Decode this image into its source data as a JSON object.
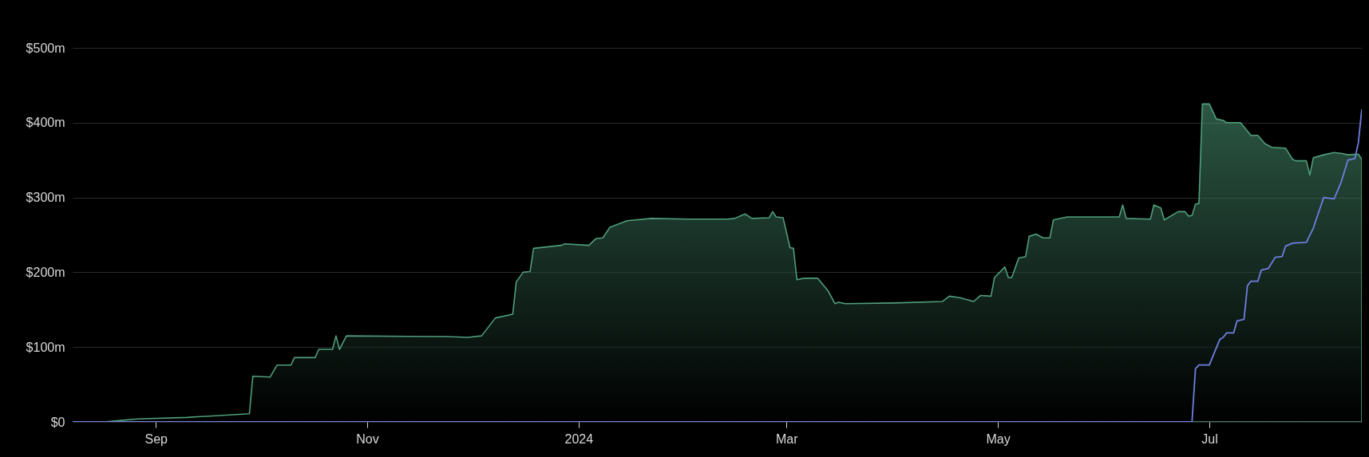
{
  "chart_data": {
    "type": "area",
    "xlim": [
      "2023-08-08",
      "2024-08-14"
    ],
    "ylim": [
      0,
      500
    ],
    "xticks": [
      {
        "value": "2023-09-01",
        "label": "Sep"
      },
      {
        "value": "2023-11-01",
        "label": "Nov"
      },
      {
        "value": "2024-01-01",
        "label": "2024"
      },
      {
        "value": "2024-03-01",
        "label": "Mar"
      },
      {
        "value": "2024-05-01",
        "label": "May"
      },
      {
        "value": "2024-07-01",
        "label": "Jul"
      }
    ],
    "yticks": [
      {
        "value": 0,
        "label": "$0"
      },
      {
        "value": 100,
        "label": "$100m"
      },
      {
        "value": 200,
        "label": "$200m"
      },
      {
        "value": 300,
        "label": "$300m"
      },
      {
        "value": 400,
        "label": "$400m"
      },
      {
        "value": 500,
        "label": "$500m"
      }
    ],
    "grid": "y",
    "series": [
      {
        "color": "#4f9e7b",
        "x": [
          "2023-08-08",
          "2023-08-17",
          "2023-08-22",
          "2023-08-27",
          "2023-09-10",
          "2023-09-28",
          "2023-09-29",
          "2023-10-04",
          "2023-10-06",
          "2023-10-10",
          "2023-10-11",
          "2023-10-17",
          "2023-10-18",
          "2023-10-22",
          "2023-10-23",
          "2023-10-24",
          "2023-10-26",
          "2023-11-24",
          "2023-11-30",
          "2023-12-04",
          "2023-12-08",
          "2023-12-13",
          "2023-12-14",
          "2023-12-16",
          "2023-12-18",
          "2023-12-19",
          "2023-12-27",
          "2023-12-28",
          "2024-01-04",
          "2024-01-06",
          "2024-01-08",
          "2024-01-10",
          "2024-01-15",
          "2024-01-22",
          "2024-02-02",
          "2024-02-13",
          "2024-02-15",
          "2024-02-18",
          "2024-02-20",
          "2024-02-25",
          "2024-02-26",
          "2024-02-27",
          "2024-02-29",
          "2024-03-02",
          "2024-03-03",
          "2024-03-04",
          "2024-03-06",
          "2024-03-10",
          "2024-03-13",
          "2024-03-15",
          "2024-03-16",
          "2024-03-18",
          "2024-04-01",
          "2024-04-15",
          "2024-04-17",
          "2024-04-20",
          "2024-04-24",
          "2024-04-26",
          "2024-04-29",
          "2024-04-30",
          "2024-05-03",
          "2024-05-04",
          "2024-05-05",
          "2024-05-07",
          "2024-05-09",
          "2024-05-10",
          "2024-05-12",
          "2024-05-14",
          "2024-05-16",
          "2024-05-17",
          "2024-05-21",
          "2024-06-05",
          "2024-06-06",
          "2024-06-07",
          "2024-06-14",
          "2024-06-15",
          "2024-06-17",
          "2024-06-18",
          "2024-06-22",
          "2024-06-24",
          "2024-06-25",
          "2024-06-26",
          "2024-06-27",
          "2024-06-28",
          "2024-06-29",
          "2024-07-01",
          "2024-07-03",
          "2024-07-05",
          "2024-07-06",
          "2024-07-10",
          "2024-07-13",
          "2024-07-15",
          "2024-07-17",
          "2024-07-19",
          "2024-07-23",
          "2024-07-25",
          "2024-07-26",
          "2024-07-29",
          "2024-07-30",
          "2024-07-31",
          "2024-08-03",
          "2024-08-06",
          "2024-08-08",
          "2024-08-10",
          "2024-08-13",
          "2024-08-14"
        ],
        "values": [
          0,
          0,
          2,
          4,
          6,
          11,
          61,
          60,
          76,
          76,
          86,
          86,
          97,
          97,
          115,
          97,
          115,
          114,
          113,
          115,
          139,
          144,
          187,
          200,
          201,
          232,
          236,
          238,
          236,
          245,
          246,
          260,
          269,
          272,
          271,
          271,
          272,
          278,
          272,
          273,
          281,
          274,
          273,
          233,
          232,
          190,
          192,
          192,
          175,
          158,
          160,
          158,
          159,
          161,
          168,
          166,
          161,
          169,
          168,
          193,
          207,
          193,
          193,
          219,
          221,
          248,
          251,
          246,
          246,
          270,
          274,
          274,
          290,
          272,
          271,
          290,
          286,
          270,
          281,
          281,
          275,
          276,
          291,
          292,
          425,
          425,
          405,
          403,
          400,
          400,
          383,
          383,
          372,
          367,
          366,
          351,
          349,
          349,
          330,
          353,
          357,
          360,
          359,
          357,
          358,
          351
        ]
      },
      {
        "type": "line",
        "color": "#6f7fe0",
        "x": [
          "2023-08-08",
          "2024-06-26",
          "2024-06-27",
          "2024-06-28",
          "2024-07-01",
          "2024-07-04",
          "2024-07-05",
          "2024-07-06",
          "2024-07-08",
          "2024-07-09",
          "2024-07-11",
          "2024-07-12",
          "2024-07-13",
          "2024-07-15",
          "2024-07-16",
          "2024-07-18",
          "2024-07-20",
          "2024-07-22",
          "2024-07-23",
          "2024-07-25",
          "2024-07-29",
          "2024-07-31",
          "2024-08-03",
          "2024-08-06",
          "2024-08-08",
          "2024-08-10",
          "2024-08-12",
          "2024-08-13",
          "2024-08-14"
        ],
        "values": [
          0,
          0,
          71,
          76,
          76,
          110,
          113,
          119,
          119,
          135,
          137,
          182,
          188,
          188,
          203,
          205,
          220,
          221,
          235,
          239,
          240,
          259,
          300,
          298,
          320,
          350,
          352,
          373,
          418
        ]
      }
    ]
  }
}
